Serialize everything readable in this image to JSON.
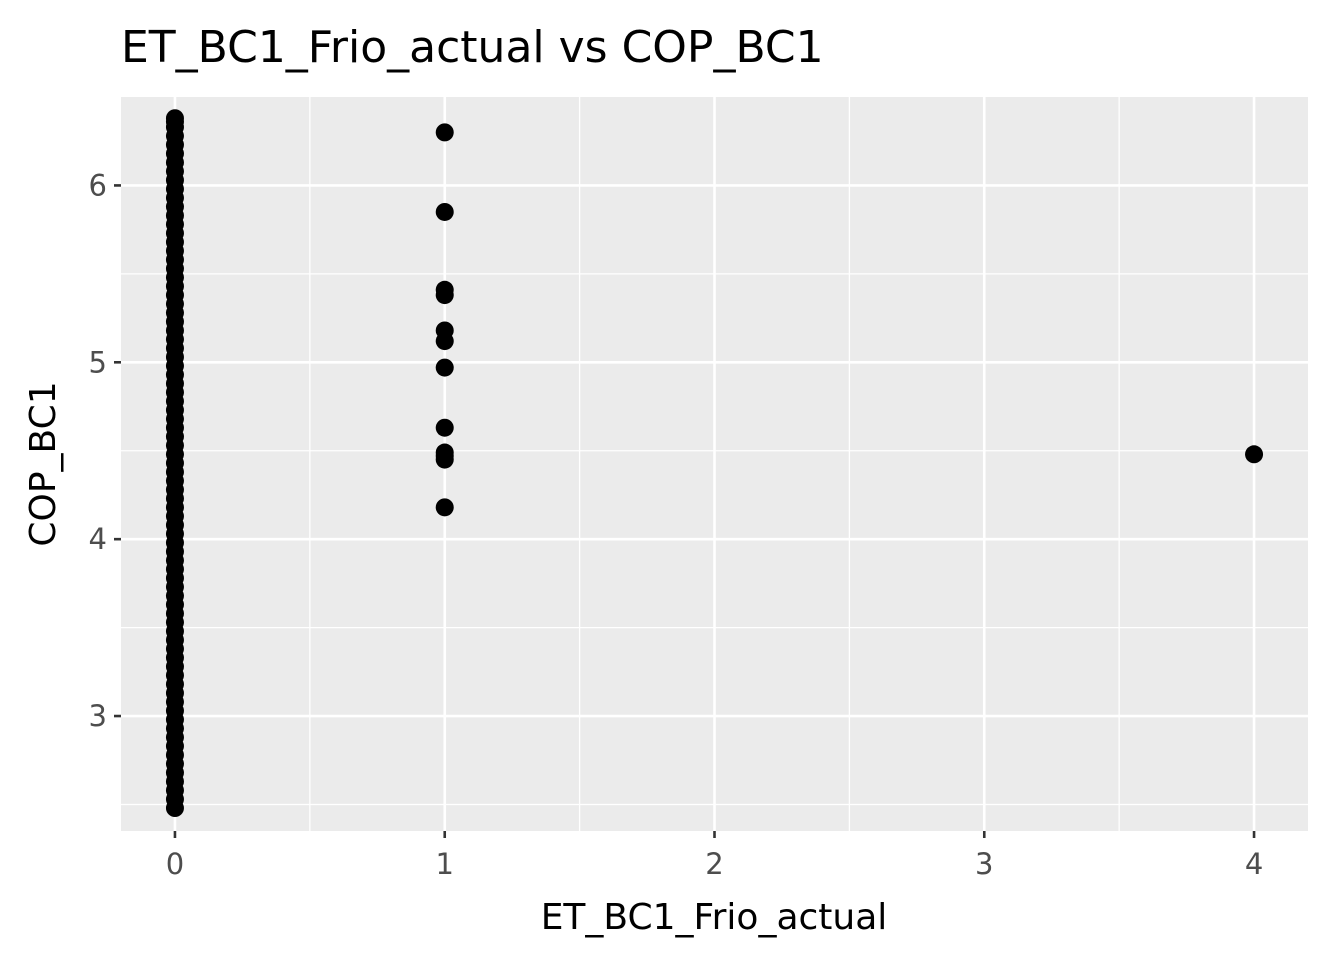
{
  "chart_data": {
    "type": "scatter",
    "title": "ET_BC1_Frio_actual vs COP_BC1",
    "xlabel": "ET_BC1_Frio_actual",
    "ylabel": "COP_BC1",
    "xlim": [
      -0.2,
      4.2
    ],
    "ylim": [
      2.35,
      6.5
    ],
    "x_ticks": [
      0,
      1,
      2,
      3,
      4
    ],
    "y_ticks": [
      3,
      4,
      5,
      6
    ],
    "x_tick_labels": [
      "0",
      "1",
      "2",
      "3",
      "4"
    ],
    "y_tick_labels": [
      "3",
      "4",
      "5",
      "6"
    ],
    "grid": true,
    "legend": "none",
    "colors": {
      "panel": "#ebebeb",
      "grid": "#ffffff",
      "point": "#000000"
    },
    "series": [
      {
        "x": [
          0,
          0,
          0,
          0,
          0,
          0,
          0,
          0,
          0,
          0,
          0,
          0,
          0,
          0,
          0,
          0,
          0,
          0,
          0,
          0,
          0,
          0,
          0,
          0,
          0,
          0,
          0,
          0,
          0,
          0,
          0,
          0,
          0,
          0,
          0,
          0,
          0,
          0,
          0,
          0,
          0,
          0,
          0,
          0,
          0,
          0,
          0,
          0,
          0,
          0,
          0,
          0,
          0,
          0,
          0,
          0,
          0,
          0,
          0,
          0,
          0,
          0,
          0,
          0,
          0,
          0,
          0,
          0,
          0,
          0,
          0,
          0,
          0,
          0,
          0,
          0,
          0,
          0,
          0,
          0,
          1,
          1,
          1,
          1,
          1,
          1,
          1,
          1,
          1,
          1,
          1,
          1,
          4
        ],
        "y": [
          2.48,
          2.53,
          2.58,
          2.63,
          2.68,
          2.73,
          2.78,
          2.83,
          2.88,
          2.93,
          2.98,
          3.03,
          3.08,
          3.13,
          3.18,
          3.23,
          3.28,
          3.33,
          3.38,
          3.43,
          3.48,
          3.53,
          3.58,
          3.63,
          3.68,
          3.73,
          3.78,
          3.83,
          3.88,
          3.93,
          3.98,
          4.03,
          4.08,
          4.13,
          4.18,
          4.23,
          4.28,
          4.33,
          4.38,
          4.43,
          4.48,
          4.53,
          4.58,
          4.63,
          4.68,
          4.73,
          4.78,
          4.83,
          4.88,
          4.93,
          4.98,
          5.03,
          5.08,
          5.13,
          5.18,
          5.23,
          5.28,
          5.33,
          5.38,
          5.43,
          5.48,
          5.53,
          5.58,
          5.63,
          5.68,
          5.73,
          5.78,
          5.83,
          5.88,
          5.93,
          5.98,
          6.03,
          6.08,
          6.13,
          6.18,
          6.23,
          6.28,
          6.33,
          6.38,
          6.36,
          6.3,
          5.85,
          5.41,
          5.38,
          5.18,
          5.12,
          4.97,
          4.63,
          4.49,
          4.47,
          4.45,
          4.18,
          4.48
        ]
      }
    ]
  }
}
